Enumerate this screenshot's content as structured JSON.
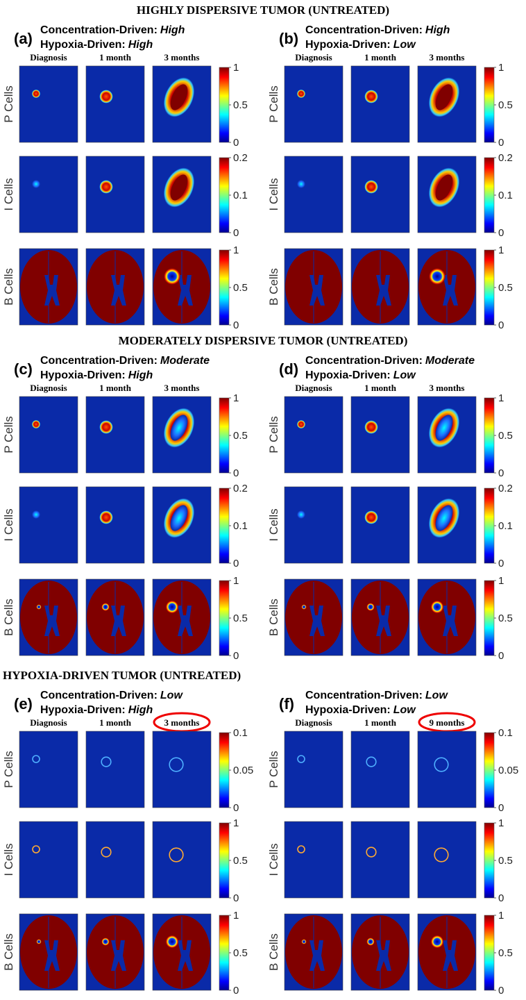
{
  "sections": [
    {
      "title": "HIGHLY DISPERSIVE TUMOR (UNTREATED)",
      "panels": [
        {
          "label": "(a)",
          "conc_label": "Concentration-Driven:",
          "conc_value": "High",
          "hyp_label": "Hypoxia-Driven:",
          "hyp_value": "High",
          "columns": [
            "Diagnosis",
            "1 month",
            "3 months"
          ],
          "rows": [
            {
              "name": "P Cells",
              "colorbar": [
                "1",
                "0.5",
                "0"
              ]
            },
            {
              "name": "I Cells",
              "colorbar": [
                "0.2",
                "0.1",
                "0"
              ]
            },
            {
              "name": "B Cells",
              "colorbar": [
                "1",
                "0.5",
                "0"
              ]
            }
          ]
        },
        {
          "label": "(b)",
          "conc_label": "Concentration-Driven:",
          "conc_value": "High",
          "hyp_label": "Hypoxia-Driven:",
          "hyp_value": "Low",
          "columns": [
            "Diagnosis",
            "1 month",
            "3 months"
          ],
          "rows": [
            {
              "name": "P Cells",
              "colorbar": [
                "1",
                "0.5",
                "0"
              ]
            },
            {
              "name": "I Cells",
              "colorbar": [
                "0.2",
                "0.1",
                "0"
              ]
            },
            {
              "name": "B Cells",
              "colorbar": [
                "1",
                "0.5",
                "0"
              ]
            }
          ]
        }
      ]
    },
    {
      "title": "MODERATELY DISPERSIVE TUMOR (UNTREATED)",
      "panels": [
        {
          "label": "(c)",
          "conc_label": "Concentration-Driven:",
          "conc_value": "Moderate",
          "hyp_label": "Hypoxia-Driven:",
          "hyp_value": "High",
          "columns": [
            "Diagnosis",
            "1 month",
            "3 months"
          ],
          "rows": [
            {
              "name": "P Cells",
              "colorbar": [
                "1",
                "0.5",
                "0"
              ]
            },
            {
              "name": "I Cells",
              "colorbar": [
                "0.2",
                "0.1",
                "0"
              ]
            },
            {
              "name": "B Cells",
              "colorbar": [
                "1",
                "0.5",
                "0"
              ]
            }
          ]
        },
        {
          "label": "(d)",
          "conc_label": "Concentration-Driven:",
          "conc_value": "Moderate",
          "hyp_label": "Hypoxia-Driven:",
          "hyp_value": "Low",
          "columns": [
            "Diagnosis",
            "1 month",
            "3 months"
          ],
          "rows": [
            {
              "name": "P Cells",
              "colorbar": [
                "1",
                "0.5",
                "0"
              ]
            },
            {
              "name": "I Cells",
              "colorbar": [
                "0.2",
                "0.1",
                "0"
              ]
            },
            {
              "name": "B Cells",
              "colorbar": [
                "1",
                "0.5",
                "0"
              ]
            }
          ]
        }
      ]
    },
    {
      "title": "HYPOXIA-DRIVEN TUMOR (UNTREATED)",
      "panels": [
        {
          "label": "(e)",
          "conc_label": "Concentration-Driven:",
          "conc_value": "Low",
          "hyp_label": "Hypoxia-Driven:",
          "hyp_value": "High",
          "columns": [
            "Diagnosis",
            "1 month",
            "3 months"
          ],
          "rows": [
            {
              "name": "P Cells",
              "colorbar": [
                "0.1",
                "0.05",
                "0"
              ]
            },
            {
              "name": "I Cells",
              "colorbar": [
                "1",
                "0.5",
                "0"
              ]
            },
            {
              "name": "B Cells",
              "colorbar": [
                "1",
                "0.5",
                "0"
              ]
            }
          ]
        },
        {
          "label": "(f)",
          "conc_label": "Concentration-Driven:",
          "conc_value": "Low",
          "hyp_label": "Hypoxia-Driven:",
          "hyp_value": "Low",
          "columns": [
            "Diagnosis",
            "1 month",
            "9 months"
          ],
          "rows": [
            {
              "name": "P Cells",
              "colorbar": [
                "0.1",
                "0.05",
                "0"
              ]
            },
            {
              "name": "I Cells",
              "colorbar": [
                "1",
                "0.5",
                "0"
              ]
            },
            {
              "name": "B Cells",
              "colorbar": [
                "1",
                "0.5",
                "0"
              ]
            }
          ]
        }
      ]
    }
  ]
}
